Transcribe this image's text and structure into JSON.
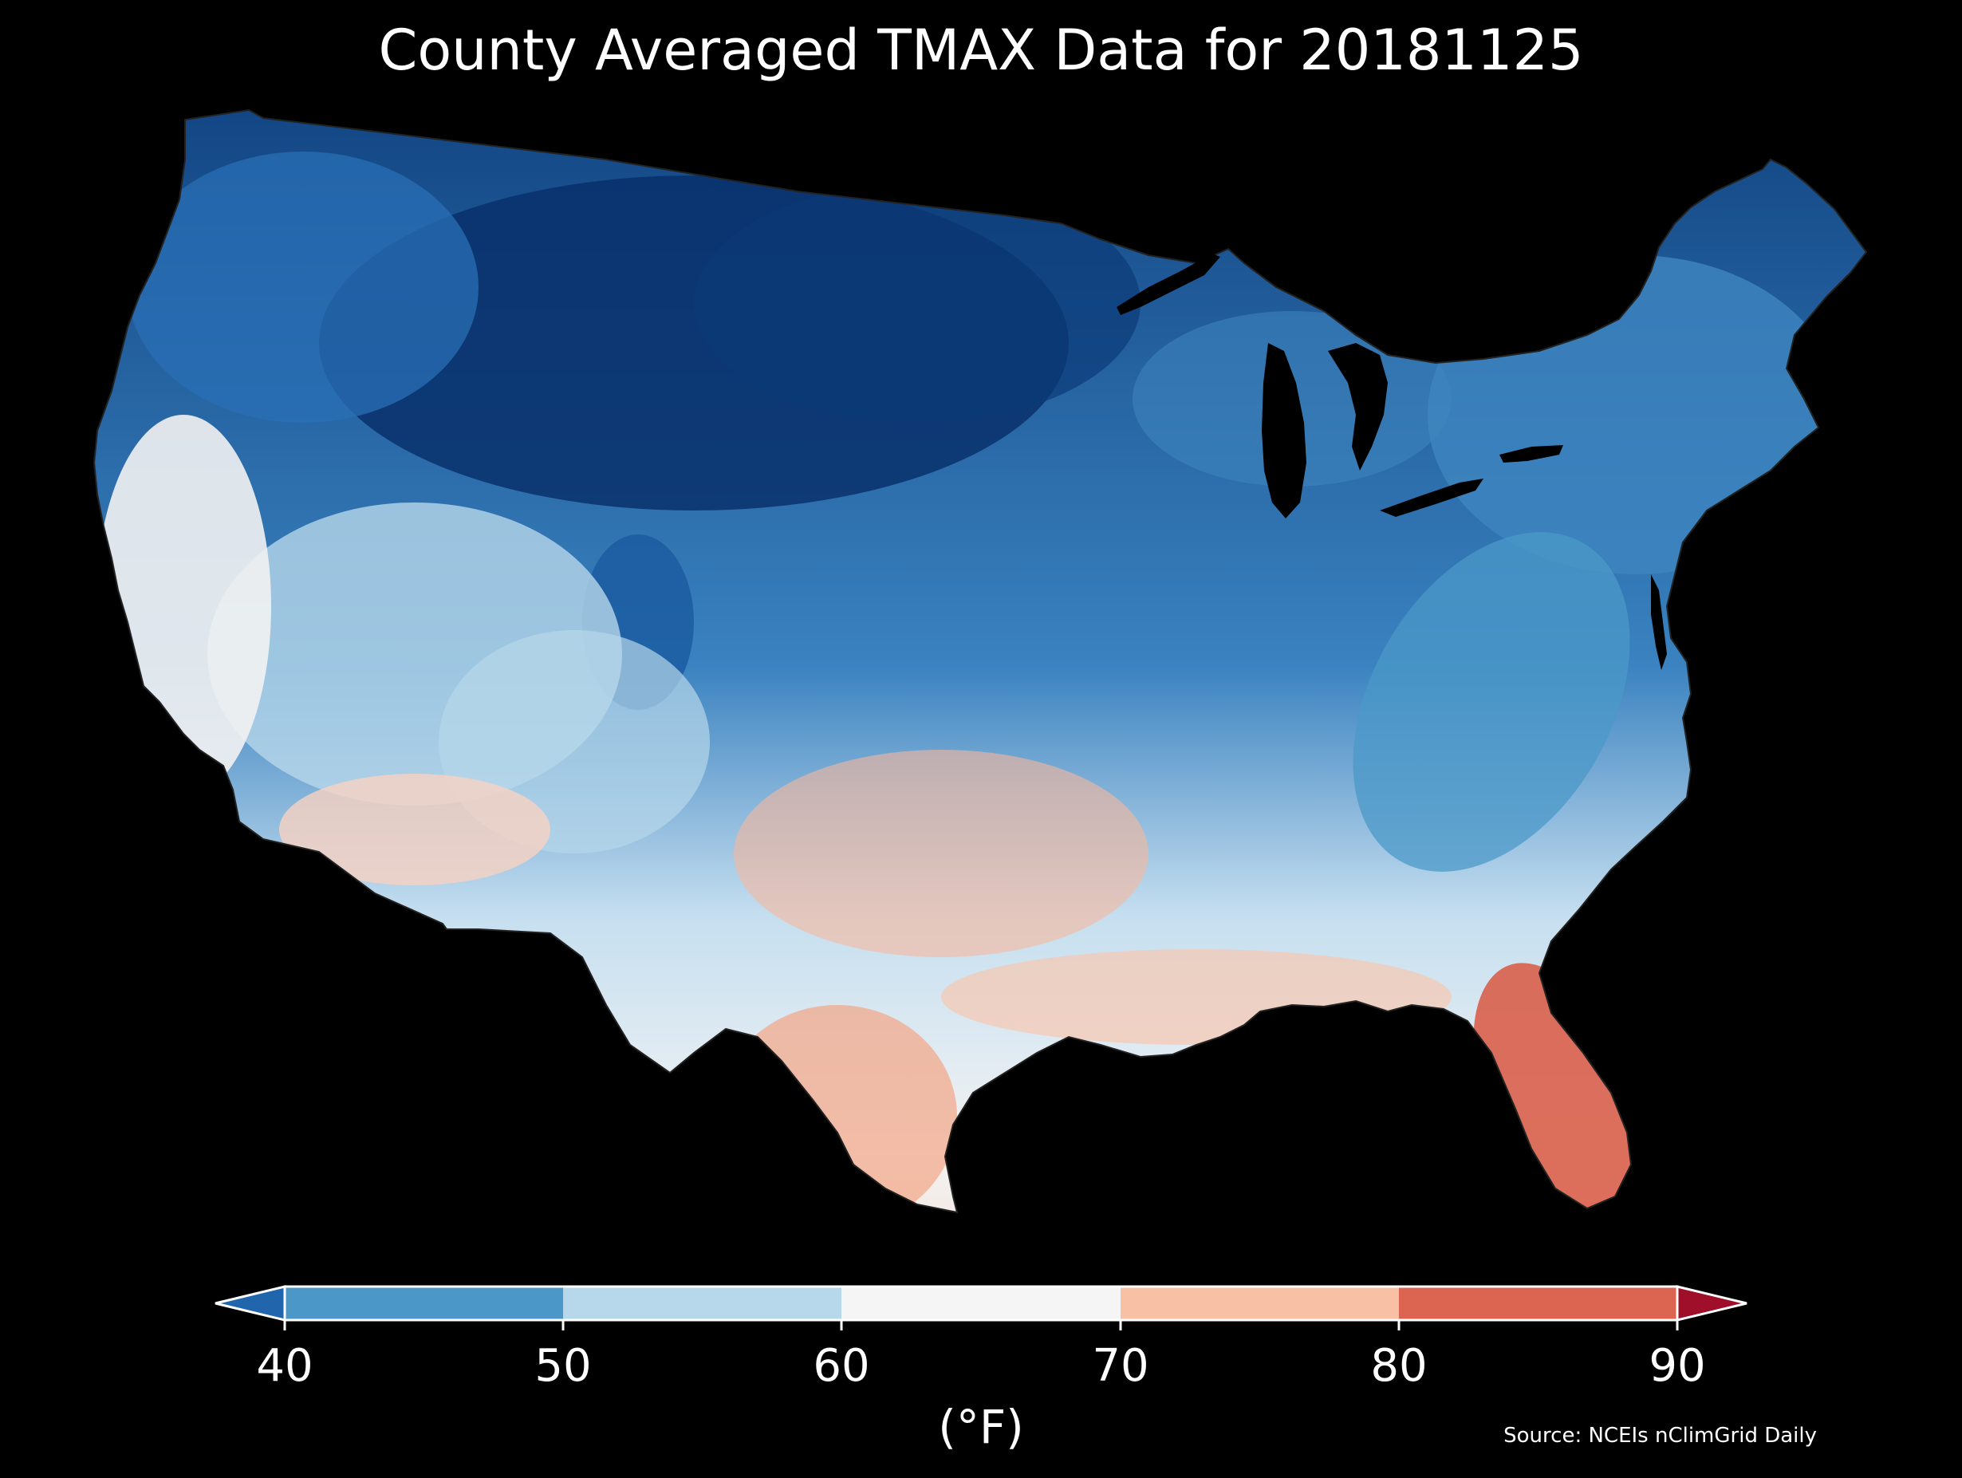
{
  "title": "County Averaged TMAX Data for 20181125",
  "source": "Source: NCEIs nClimGrid Daily",
  "colorbar": {
    "units": "(°F)",
    "ticks": [
      "40",
      "50",
      "60",
      "70",
      "80",
      "90"
    ],
    "bins": [
      {
        "range": "<40",
        "color": "#2166ac"
      },
      {
        "range": "40-50",
        "color": "#4b98c8"
      },
      {
        "range": "50-60",
        "color": "#b7d7ea"
      },
      {
        "range": "60-70",
        "color": "#f5f5f5"
      },
      {
        "range": "70-80",
        "color": "#f8c0a4"
      },
      {
        "range": "80-90",
        "color": "#dc6551"
      },
      {
        "range": ">90",
        "color": "#9f0f2a"
      }
    ]
  },
  "map": {
    "region": "Contiguous United States",
    "boundaries": "county",
    "variable": "TMAX",
    "regional_shading": [
      {
        "region": "northern-plains-rockies",
        "color": "#08306b"
      },
      {
        "region": "northwest-north",
        "color": "#2a6fb5"
      },
      {
        "region": "great-lakes-northeast",
        "color": "#3f86c0"
      },
      {
        "region": "appalachians",
        "color": "#5ba3d0"
      },
      {
        "region": "great-basin-central",
        "color": "#b7d7ea"
      },
      {
        "region": "california-midwest-south",
        "color": "#f2f2f2"
      },
      {
        "region": "southwest-texas-gulf",
        "color": "#f7cab4"
      },
      {
        "region": "florida",
        "color": "#dd7260"
      }
    ]
  }
}
